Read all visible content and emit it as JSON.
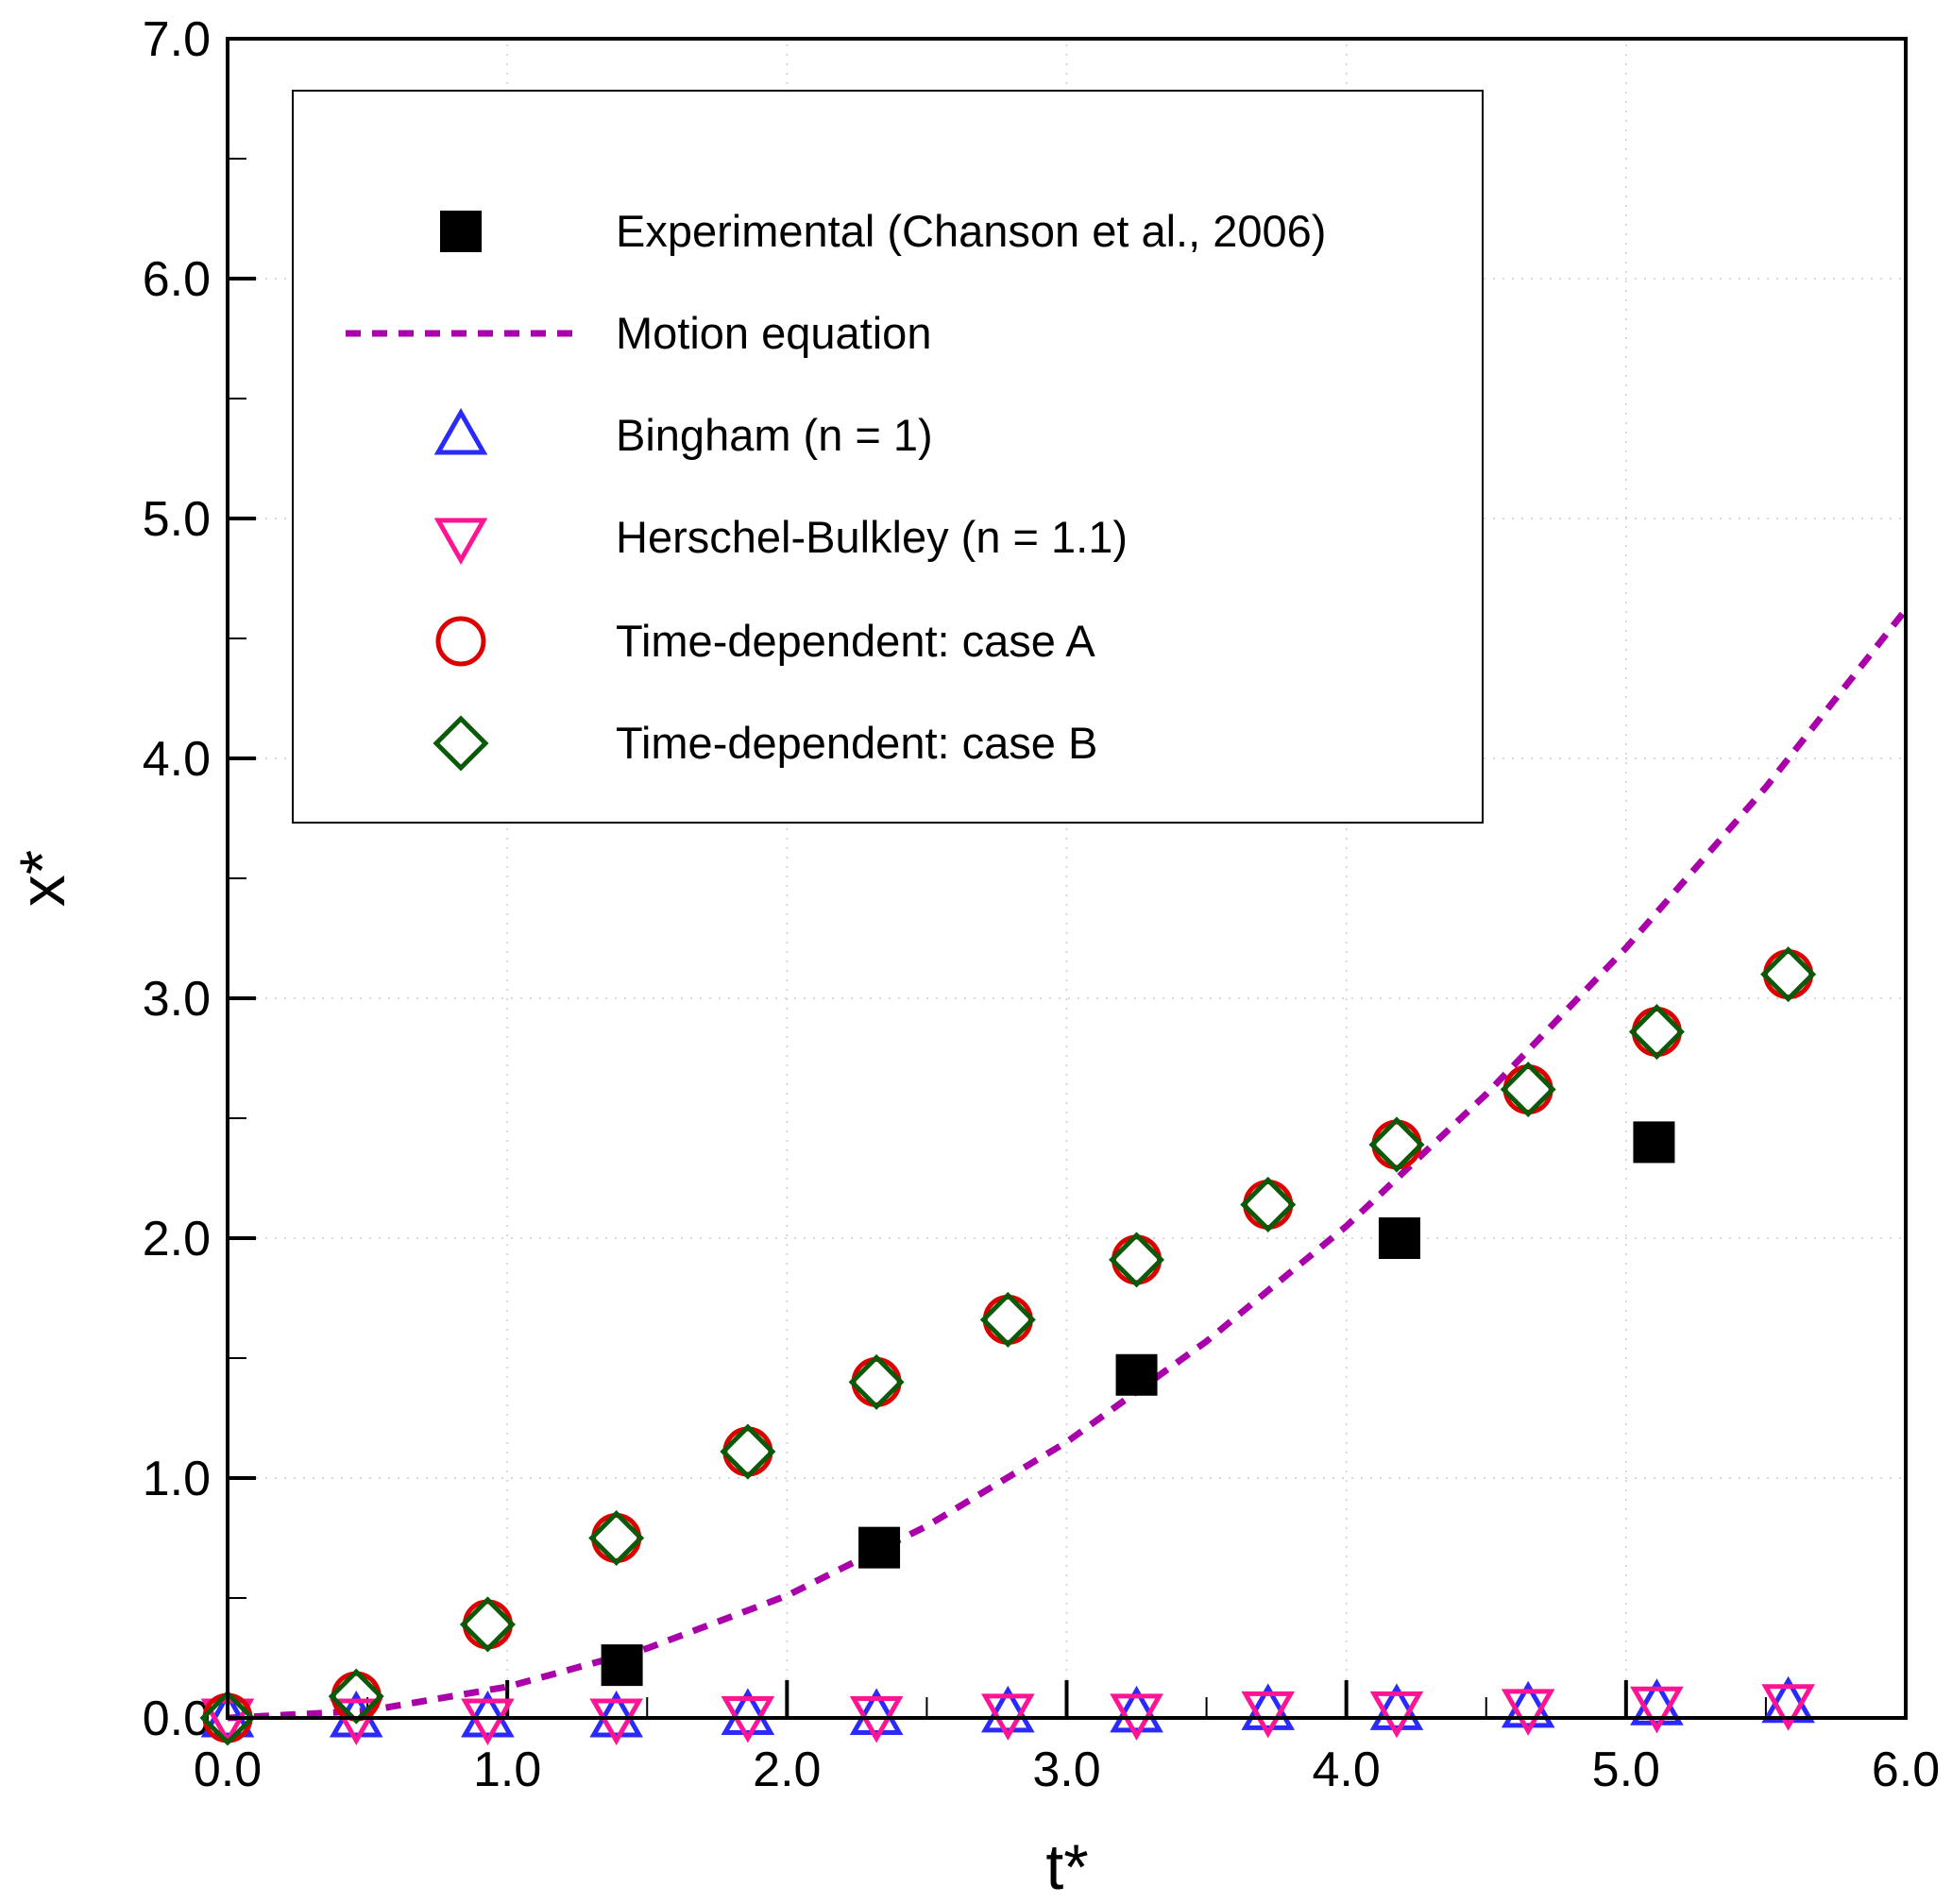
{
  "chart_data": {
    "type": "scatter",
    "xlabel": "t*",
    "ylabel": "x*",
    "xlim": [
      0,
      6
    ],
    "ylim": [
      0,
      7
    ],
    "xticks": [
      "0.0",
      "1.0",
      "2.0",
      "3.0",
      "4.0",
      "5.0",
      "6.0"
    ],
    "yticks": [
      "0.0",
      "1.0",
      "2.0",
      "3.0",
      "4.0",
      "5.0",
      "6.0",
      "7.0"
    ],
    "grid": true,
    "legend_position": "top-left",
    "series": [
      {
        "name": "Experimental (Chanson et al., 2006)",
        "marker": "filled-square",
        "color": "#000000",
        "x": [
          1.41,
          2.33,
          3.25,
          4.19,
          5.1
        ],
        "y": [
          0.22,
          0.71,
          1.43,
          2.0,
          2.4
        ]
      },
      {
        "name": "Motion equation",
        "marker": "dashed-line",
        "color": "#aa00aa",
        "x": [
          0,
          0.5,
          1.0,
          1.5,
          2.0,
          2.5,
          3.0,
          3.5,
          4.0,
          4.5,
          5.0,
          5.5,
          6.0
        ],
        "y": [
          0,
          0.03,
          0.13,
          0.29,
          0.51,
          0.8,
          1.15,
          1.57,
          2.05,
          2.6,
          3.21,
          3.88,
          4.62
        ]
      },
      {
        "name": "Bingham (n = 1)",
        "marker": "triangle-up",
        "color": "#2a2aff",
        "x": [
          0,
          0.46,
          0.93,
          1.39,
          1.86,
          2.32,
          2.79,
          3.25,
          3.72,
          4.18,
          4.65,
          5.11,
          5.58
        ],
        "y": [
          0,
          0.0,
          0.0,
          0.0,
          0.01,
          0.01,
          0.02,
          0.02,
          0.03,
          0.03,
          0.04,
          0.05,
          0.06
        ]
      },
      {
        "name": "Herschel-Bulkley (n = 1.1)",
        "marker": "triangle-down",
        "color": "#ff1493",
        "x": [
          0,
          0.46,
          0.93,
          1.39,
          1.86,
          2.32,
          2.79,
          3.25,
          3.72,
          4.18,
          4.65,
          5.11,
          5.58
        ],
        "y": [
          0,
          0.0,
          0.0,
          0.0,
          0.01,
          0.01,
          0.02,
          0.02,
          0.03,
          0.03,
          0.04,
          0.05,
          0.06
        ]
      },
      {
        "name": "Time-dependent: case A",
        "marker": "circle",
        "color": "#dd0000",
        "x": [
          0,
          0.46,
          0.93,
          1.39,
          1.86,
          2.32,
          2.79,
          3.25,
          3.72,
          4.18,
          4.65,
          5.11,
          5.58
        ],
        "y": [
          0,
          0.09,
          0.39,
          0.75,
          1.11,
          1.4,
          1.66,
          1.91,
          2.14,
          2.39,
          2.62,
          2.86,
          3.1
        ]
      },
      {
        "name": "Time-dependent: case B",
        "marker": "diamond",
        "color": "#0a5a0a",
        "x": [
          0,
          0.46,
          0.93,
          1.39,
          1.86,
          2.32,
          2.79,
          3.25,
          3.72,
          4.18,
          4.65,
          5.11,
          5.58
        ],
        "y": [
          0,
          0.09,
          0.39,
          0.75,
          1.11,
          1.4,
          1.66,
          1.91,
          2.14,
          2.39,
          2.62,
          2.86,
          3.1
        ]
      }
    ]
  }
}
